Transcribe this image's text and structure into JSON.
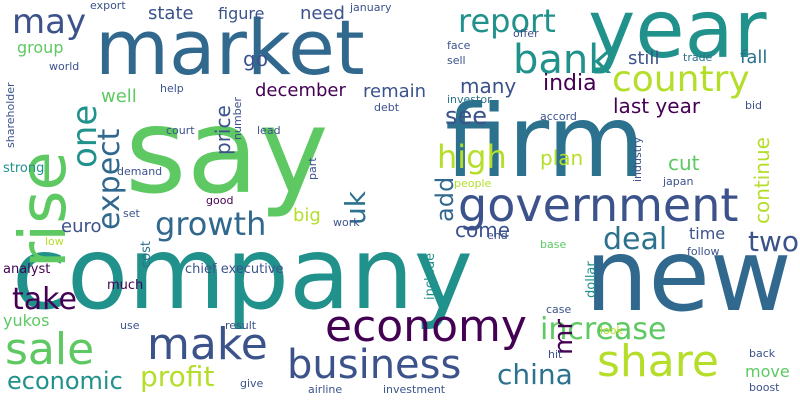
{
  "words": [
    {
      "text": "say",
      "color": "#5ec962"
    },
    {
      "text": "company",
      "color": "#21918c"
    },
    {
      "text": "firm",
      "color": "#2c728e"
    },
    {
      "text": "market",
      "color": "#31688e"
    },
    {
      "text": "new",
      "color": "#31688e"
    },
    {
      "text": "year",
      "color": "#21918c"
    },
    {
      "text": "rise",
      "color": "#5ec962"
    },
    {
      "text": "government",
      "color": "#3b528b"
    },
    {
      "text": "economy",
      "color": "#440154"
    },
    {
      "text": "sale",
      "color": "#5ec962"
    },
    {
      "text": "share",
      "color": "#b5de2b"
    },
    {
      "text": "make",
      "color": "#3b528b"
    },
    {
      "text": "bank",
      "color": "#21918c"
    },
    {
      "text": "business",
      "color": "#3b528b"
    },
    {
      "text": "country",
      "color": "#b5de2b"
    },
    {
      "text": "growth",
      "color": "#31688e"
    },
    {
      "text": "one",
      "color": "#21918c"
    },
    {
      "text": "report",
      "color": "#21918c"
    },
    {
      "text": "may",
      "color": "#3b528b"
    },
    {
      "text": "high",
      "color": "#b5de2b"
    },
    {
      "text": "expect",
      "color": "#31688e"
    },
    {
      "text": "deal",
      "color": "#2c728e"
    },
    {
      "text": "increase",
      "color": "#5ec962"
    },
    {
      "text": "profit",
      "color": "#b5de2b"
    },
    {
      "text": "economic",
      "color": "#21918c"
    },
    {
      "text": "take",
      "color": "#440154"
    },
    {
      "text": "china",
      "color": "#2c728e"
    },
    {
      "text": "two",
      "color": "#3b528b"
    },
    {
      "text": "uk",
      "color": "#2c728e"
    },
    {
      "text": "see",
      "color": "#3b528b"
    },
    {
      "text": "add",
      "color": "#31688e"
    },
    {
      "text": "mr",
      "color": "#440154"
    },
    {
      "text": "last year",
      "color": "#440154"
    },
    {
      "text": "india",
      "color": "#440154"
    },
    {
      "text": "price",
      "color": "#3b528b"
    },
    {
      "text": "december",
      "color": "#440154"
    },
    {
      "text": "plan",
      "color": "#b5de2b"
    },
    {
      "text": "come",
      "color": "#3b528b"
    },
    {
      "text": "many",
      "color": "#3b528b"
    },
    {
      "text": "remain",
      "color": "#3b528b"
    },
    {
      "text": "cut",
      "color": "#5ec962"
    },
    {
      "text": "continue",
      "color": "#b5de2b"
    },
    {
      "text": "go",
      "color": "#3b528b"
    },
    {
      "text": "still",
      "color": "#3b528b"
    },
    {
      "text": "fall",
      "color": "#2c728e"
    },
    {
      "text": "state",
      "color": "#3b528b"
    },
    {
      "text": "need",
      "color": "#3b528b"
    },
    {
      "text": "figure",
      "color": "#3b528b"
    },
    {
      "text": "well",
      "color": "#5ec962"
    },
    {
      "text": "group",
      "color": "#5ec962"
    },
    {
      "text": "big",
      "color": "#b5de2b"
    },
    {
      "text": "euro",
      "color": "#3b528b"
    },
    {
      "text": "time",
      "color": "#3b528b"
    },
    {
      "text": "analyst",
      "color": "#440154"
    },
    {
      "text": "yukos",
      "color": "#5ec962"
    },
    {
      "text": "move",
      "color": "#5ec962"
    },
    {
      "text": "chief executive",
      "color": "#3b528b"
    },
    {
      "text": "much",
      "color": "#440154"
    },
    {
      "text": "cost",
      "color": "#2c728e"
    },
    {
      "text": "include",
      "color": "#21918c"
    },
    {
      "text": "dollar",
      "color": "#21918c"
    },
    {
      "text": "export",
      "color": "#3b528b"
    },
    {
      "text": "january",
      "color": "#3b528b"
    },
    {
      "text": "face",
      "color": "#3b528b"
    },
    {
      "text": "sell",
      "color": "#3b528b"
    },
    {
      "text": "offer",
      "color": "#3b528b"
    },
    {
      "text": "trade",
      "color": "#2c728e"
    },
    {
      "text": "world",
      "color": "#3b528b"
    },
    {
      "text": "shareholder",
      "color": "#3b528b"
    },
    {
      "text": "strong",
      "color": "#21918c"
    },
    {
      "text": "help",
      "color": "#3b528b"
    },
    {
      "text": "number",
      "color": "#3b528b"
    },
    {
      "text": "court",
      "color": "#3b528b"
    },
    {
      "text": "lead",
      "color": "#3b528b"
    },
    {
      "text": "debt",
      "color": "#3b528b"
    },
    {
      "text": "investor",
      "color": "#2c728e"
    },
    {
      "text": "accord",
      "color": "#3b528b"
    },
    {
      "text": "bid",
      "color": "#3b528b"
    },
    {
      "text": "industry",
      "color": "#3b528b"
    },
    {
      "text": "demand",
      "color": "#3b528b"
    },
    {
      "text": "part",
      "color": "#3b528b"
    },
    {
      "text": "people",
      "color": "#b5de2b"
    },
    {
      "text": "japan",
      "color": "#3b528b"
    },
    {
      "text": "good",
      "color": "#440154"
    },
    {
      "text": "set",
      "color": "#3b528b"
    },
    {
      "text": "work",
      "color": "#3b528b"
    },
    {
      "text": "end",
      "color": "#3b528b"
    },
    {
      "text": "low",
      "color": "#b5de2b"
    },
    {
      "text": "base",
      "color": "#5ec962"
    },
    {
      "text": "follow",
      "color": "#3b528b"
    },
    {
      "text": "use",
      "color": "#3b528b"
    },
    {
      "text": "result",
      "color": "#3b528b"
    },
    {
      "text": "case",
      "color": "#3b528b"
    },
    {
      "text": "look",
      "color": "#b5de2b"
    },
    {
      "text": "hit",
      "color": "#3b528b"
    },
    {
      "text": "back",
      "color": "#3b528b"
    },
    {
      "text": "boost",
      "color": "#3b528b"
    },
    {
      "text": "give",
      "color": "#3b528b"
    },
    {
      "text": "airline",
      "color": "#3b528b"
    },
    {
      "text": "investment",
      "color": "#3b528b"
    }
  ]
}
